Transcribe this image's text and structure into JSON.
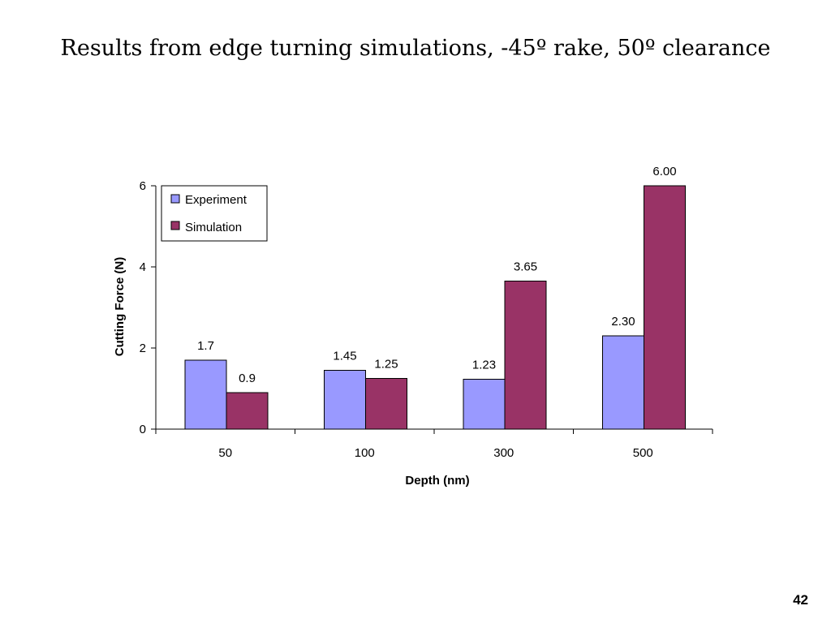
{
  "slide": {
    "title": "Results from edge turning simulations, -45º rake, 50º clearance",
    "page_number": "42"
  },
  "chart_data": {
    "type": "bar",
    "title": "",
    "xlabel": "Depth (nm)",
    "ylabel": "Cutting Force (N)",
    "categories": [
      "50",
      "100",
      "300",
      "500"
    ],
    "series": [
      {
        "name": "Experiment",
        "values": [
          1.7,
          1.45,
          1.23,
          2.3
        ],
        "labels": [
          "1.7",
          "1.45",
          "1.23",
          "2.30"
        ],
        "color": "#9999ff"
      },
      {
        "name": "Simulation",
        "values": [
          0.9,
          1.25,
          3.65,
          6.0
        ],
        "labels": [
          "0.9",
          "1.25",
          "3.65",
          "6.00"
        ],
        "color": "#993366"
      }
    ],
    "ylim": [
      0,
      6
    ],
    "yticks": [
      0,
      2,
      4,
      6
    ],
    "grid": false,
    "legend_position": "top-left"
  }
}
